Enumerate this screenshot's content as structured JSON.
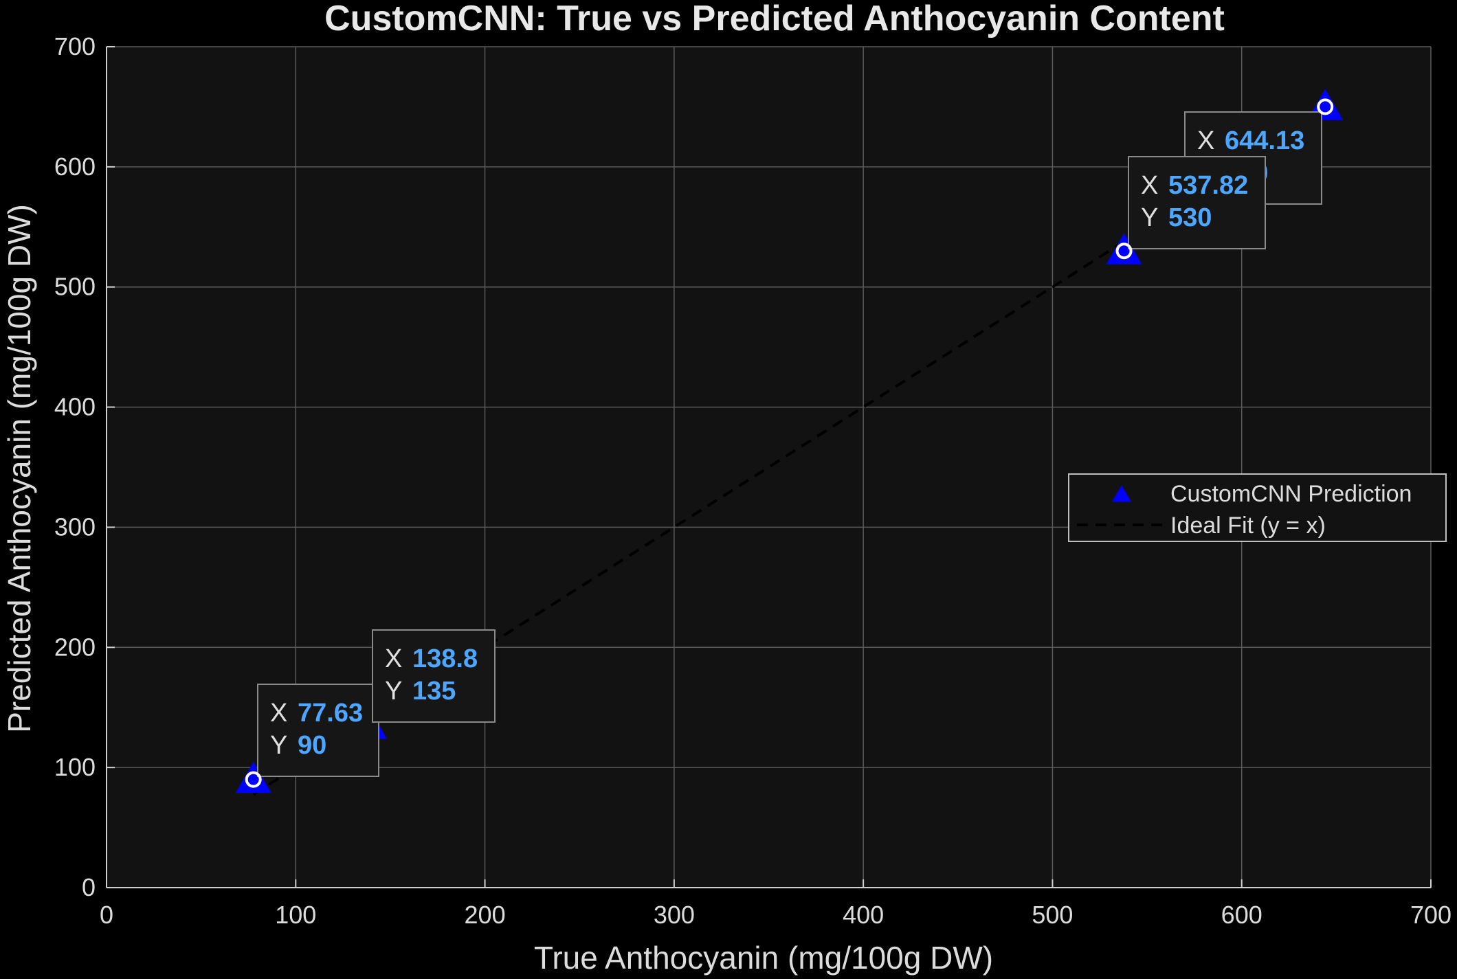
{
  "chart_data": {
    "type": "scatter",
    "title": "CustomCNN: True vs Predicted Anthocyanin Content",
    "xlabel": "True Anthocyanin (mg/100g DW)",
    "ylabel": "Predicted Anthocyanin (mg/100g DW)",
    "xlim": [
      0,
      700
    ],
    "ylim": [
      0,
      700
    ],
    "xticks": [
      "0",
      "100",
      "200",
      "300",
      "400",
      "500",
      "600",
      "700"
    ],
    "yticks": [
      "0",
      "100",
      "200",
      "300",
      "400",
      "500",
      "600",
      "700"
    ],
    "grid": true,
    "legend_position": "right",
    "series": [
      {
        "name": "CustomCNN Prediction",
        "marker": "triangle",
        "color": "#0000ff",
        "x": [
          77.63,
          138.8,
          537.82,
          644.13
        ],
        "y": [
          90,
          135,
          530,
          650
        ]
      },
      {
        "name": "Ideal Fit (y = x)",
        "style": "dashed",
        "color": "#000000",
        "x": [
          77.63,
          644.13
        ],
        "y": [
          77.63,
          644.13
        ]
      }
    ],
    "datatips": [
      {
        "x_key": "X",
        "x_value": "77.63",
        "y_key": "Y",
        "y_value": "90"
      },
      {
        "x_key": "X",
        "x_value": "138.8",
        "y_key": "Y",
        "y_value": "135"
      },
      {
        "x_key": "X",
        "x_value": "537.82",
        "y_key": "Y",
        "y_value": "530"
      },
      {
        "x_key": "X",
        "x_value": "644.13",
        "y_key": "Y",
        "y_value": "650"
      }
    ],
    "colors": {
      "figure_bg": "#000000",
      "axes_bg": "#121212",
      "grid": "#5a5a5a",
      "axis_line": "#d0d0d0",
      "datatip_value": "#4da6ff",
      "datatip_border": "#8a8a8a"
    }
  }
}
